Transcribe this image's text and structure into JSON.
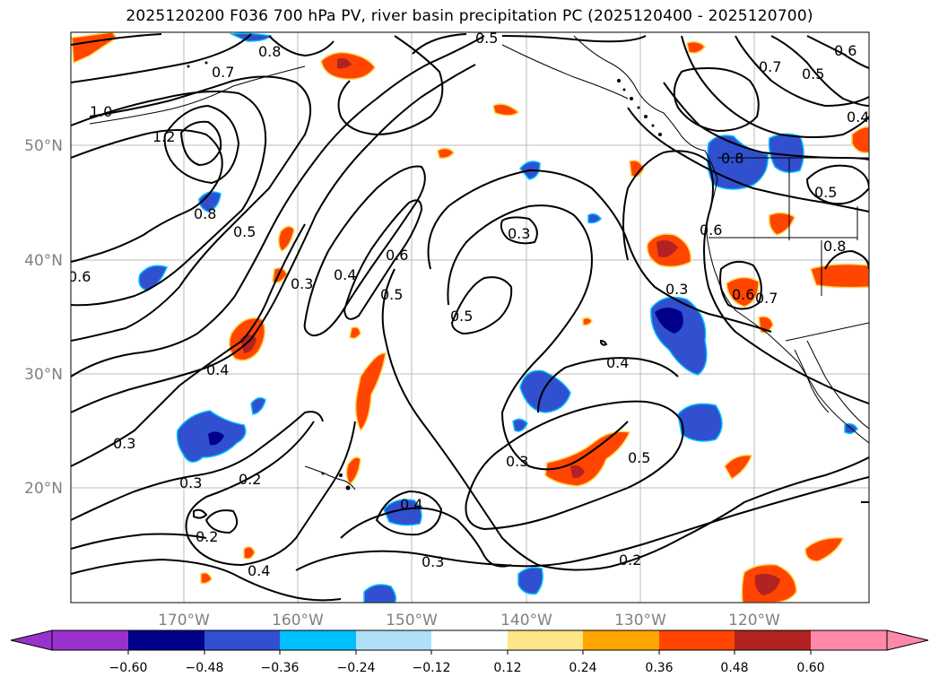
{
  "title": "2025120200 F036 700 hPa PV, river basin precipitation PC (2025120400 - 2025120700)",
  "latitude_labels": [
    "50°N",
    "40°N",
    "30°N",
    "20°N"
  ],
  "longitude_labels": [
    "170°W",
    "160°W",
    "150°W",
    "140°W",
    "130°W",
    "120°W"
  ],
  "colorbar": {
    "tick_labels": [
      "−0.60",
      "−0.48",
      "−0.36",
      "−0.24",
      "−0.12",
      "0.12",
      "0.24",
      "0.36",
      "0.48",
      "0.60"
    ],
    "colors": [
      "#9932cc",
      "#00008b",
      "#3050d0",
      "#00bfff",
      "#b0e0f8",
      "#ffffff",
      "#fde68a",
      "#ffa500",
      "#ff4500",
      "#b22222",
      "#ff88aa"
    ]
  },
  "contour_labels": [
    {
      "text": "0.8"
    },
    {
      "text": "0.5"
    },
    {
      "text": "0.7"
    },
    {
      "text": "1.0"
    },
    {
      "text": "1.2"
    },
    {
      "text": "0.8"
    },
    {
      "text": "0.5"
    },
    {
      "text": "0.3"
    },
    {
      "text": "0.4"
    },
    {
      "text": "0.6"
    },
    {
      "text": "0.5"
    },
    {
      "text": "0.3"
    },
    {
      "text": "0.5"
    },
    {
      "text": "0.3"
    },
    {
      "text": "0.4"
    },
    {
      "text": "0.4"
    },
    {
      "text": "0.3"
    },
    {
      "text": "0.3"
    },
    {
      "text": "0.2"
    },
    {
      "text": "0.3"
    },
    {
      "text": "0.5"
    },
    {
      "text": "0.4"
    },
    {
      "text": "0.2"
    },
    {
      "text": "0.4"
    },
    {
      "text": "0.3"
    },
    {
      "text": "0.2"
    },
    {
      "text": "0.6"
    },
    {
      "text": "0.7"
    },
    {
      "text": "0.5"
    },
    {
      "text": "0.6"
    },
    {
      "text": "0.4"
    },
    {
      "text": "0.6"
    },
    {
      "text": "0.5"
    },
    {
      "text": "0.6"
    },
    {
      "text": "0.8"
    },
    {
      "text": "0.7"
    },
    {
      "text": "0.8"
    }
  ]
}
